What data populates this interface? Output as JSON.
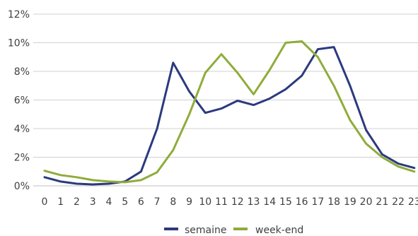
{
  "chart_data": {
    "type": "line",
    "title": "",
    "xlabel": "",
    "ylabel": "",
    "x": [
      "0",
      "1",
      "2",
      "3",
      "4",
      "5",
      "6",
      "7",
      "8",
      "9",
      "10",
      "11",
      "12",
      "13",
      "14",
      "15",
      "16",
      "17",
      "18",
      "19",
      "20",
      "21",
      "22",
      "23"
    ],
    "y_ticks": [
      "0%",
      "2%",
      "4%",
      "6%",
      "8%",
      "10%",
      "12%"
    ],
    "ylim": [
      0,
      12
    ],
    "y_unit": "%",
    "grid": true,
    "legend_position": "bottom-center",
    "series": [
      {
        "name": "semaine",
        "color": "#2b3a7e",
        "values": [
          0.6,
          0.3,
          0.15,
          0.1,
          0.15,
          0.3,
          1.0,
          4.0,
          8.6,
          6.6,
          5.1,
          5.4,
          5.95,
          5.65,
          6.1,
          6.75,
          7.7,
          9.55,
          9.7,
          7.0,
          3.9,
          2.2,
          1.55,
          1.25
        ]
      },
      {
        "name": "week-end",
        "color": "#8fac3a",
        "values": [
          1.05,
          0.75,
          0.6,
          0.4,
          0.3,
          0.25,
          0.4,
          0.95,
          2.5,
          5.0,
          7.9,
          9.2,
          7.9,
          6.4,
          8.1,
          10.0,
          10.1,
          9.0,
          7.0,
          4.6,
          2.95,
          2.0,
          1.35,
          1.0
        ]
      }
    ]
  }
}
